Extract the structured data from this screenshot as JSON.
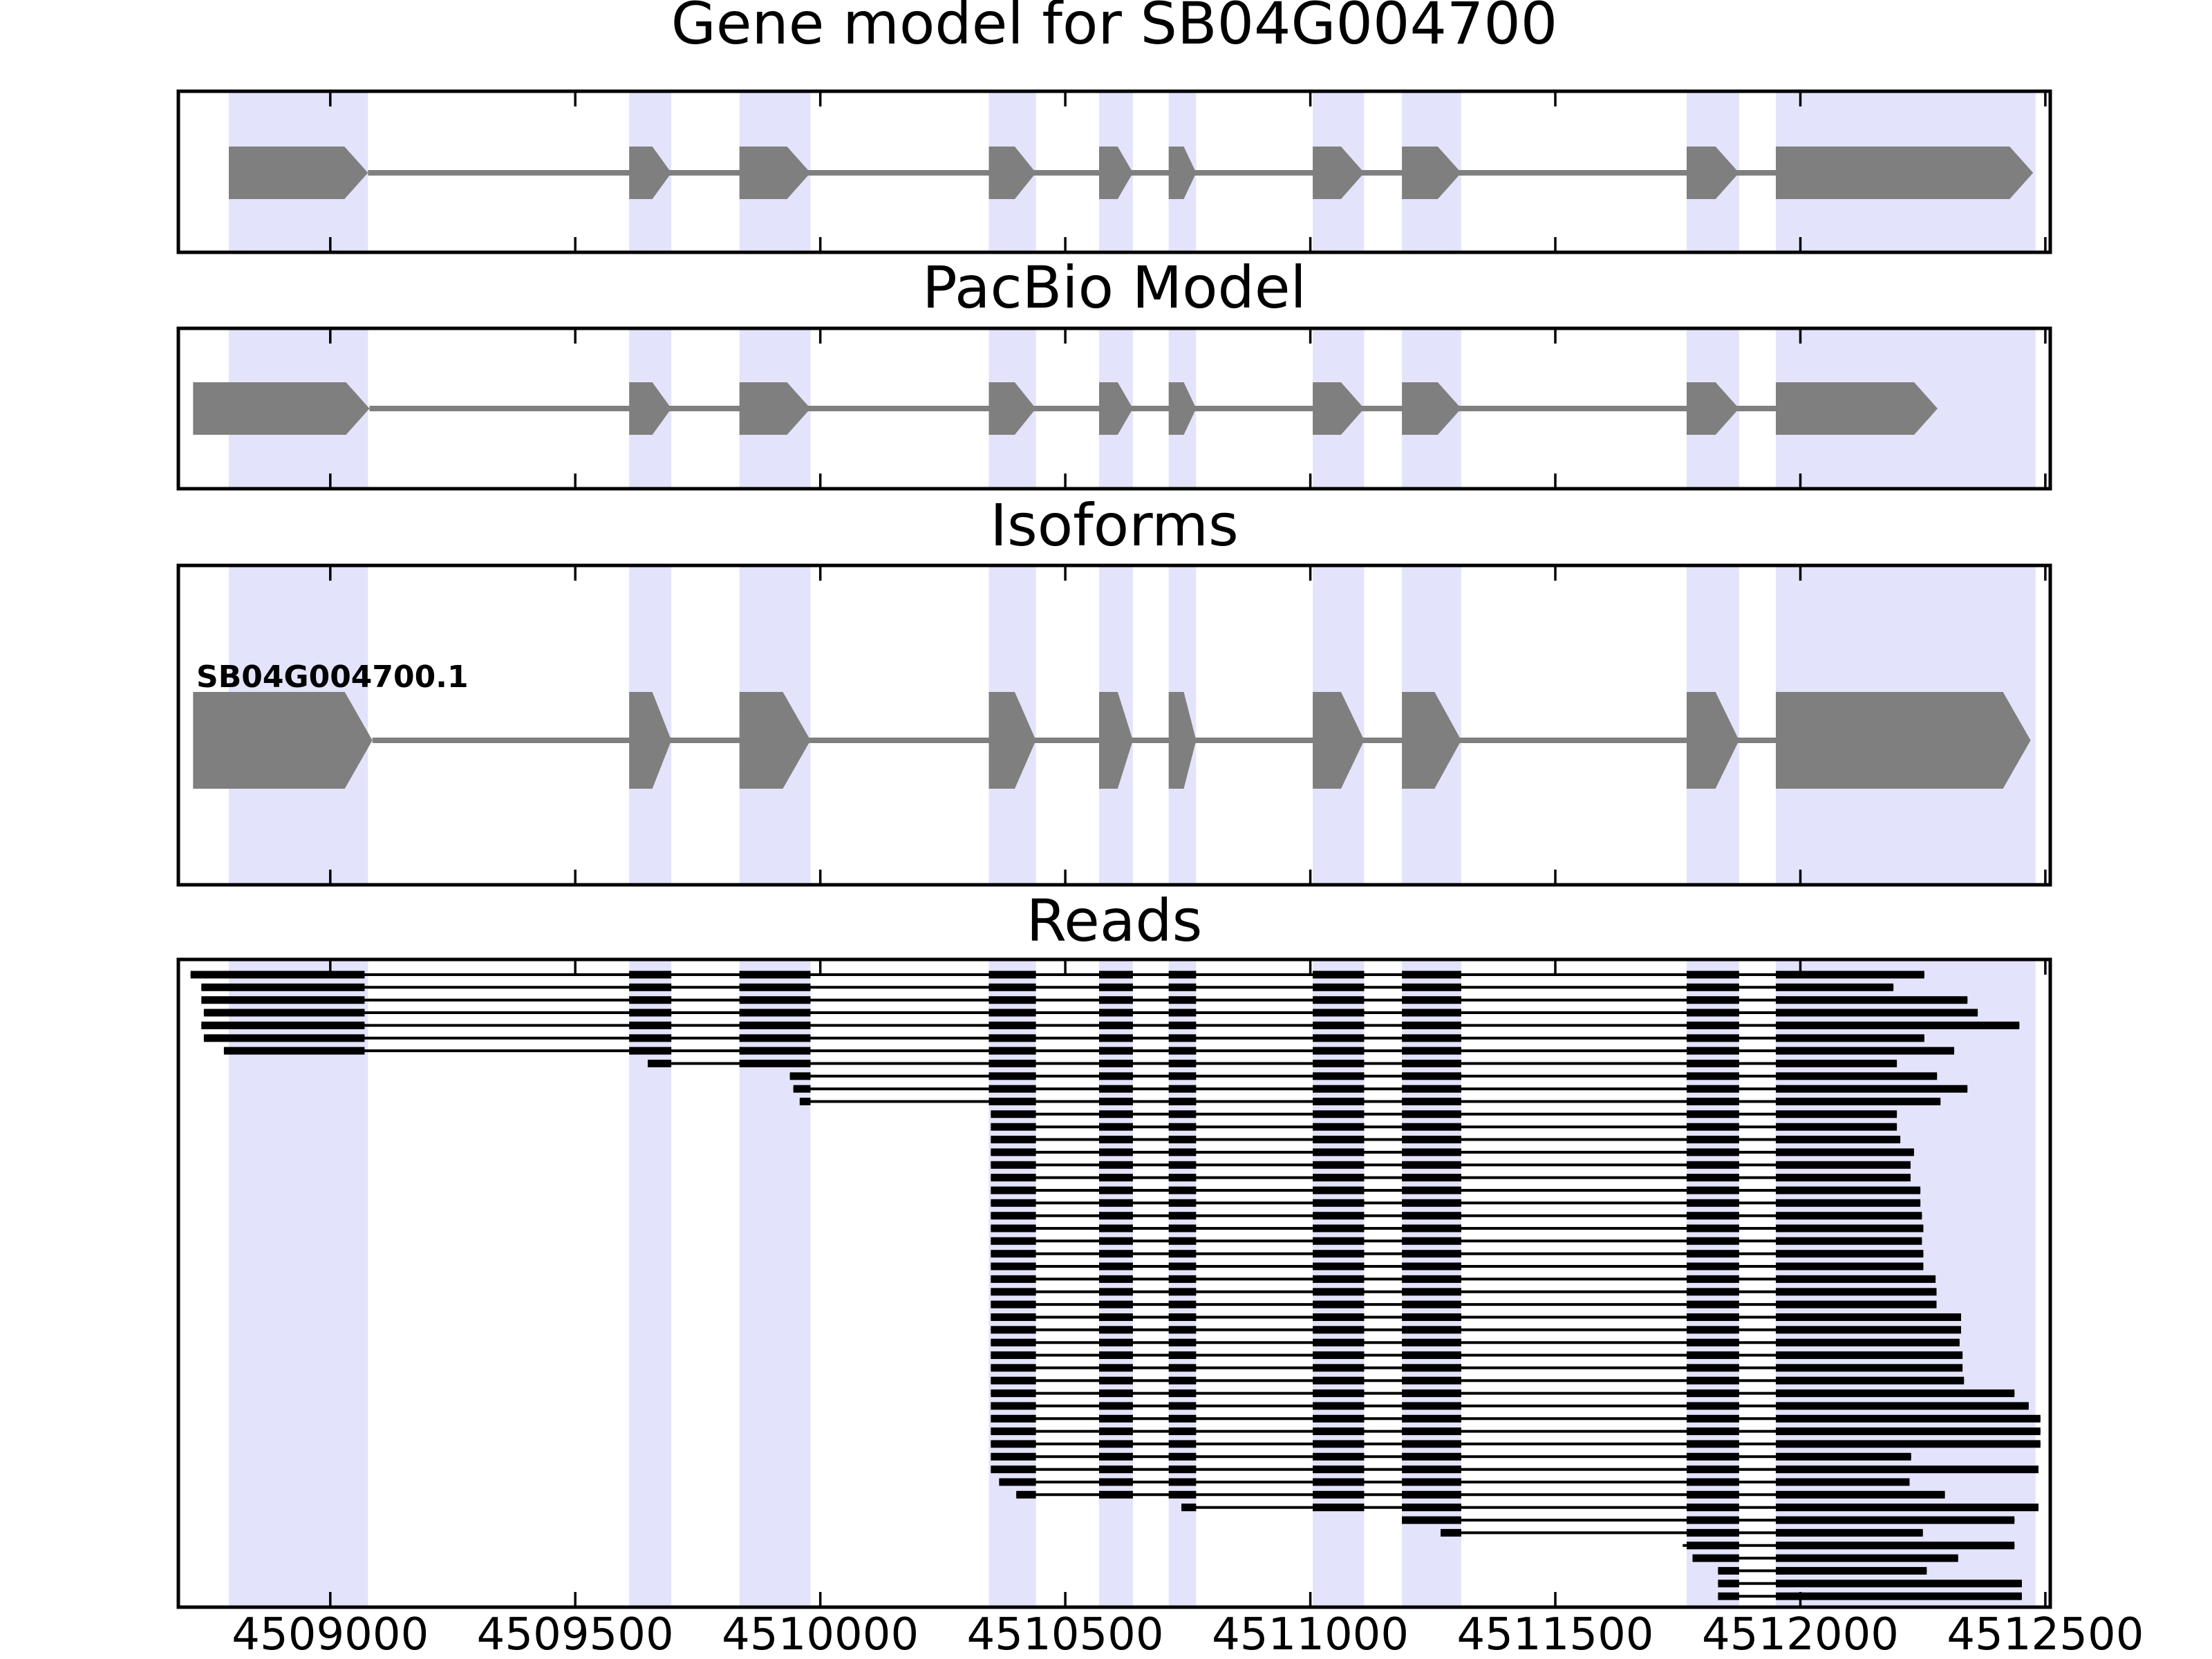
{
  "colors": {
    "background": "#ffffff",
    "band_fill": "#e3e3fb",
    "exon_fill": "#7f7f7f",
    "intron_line": "#7f7f7f",
    "read_fill": "#000000",
    "axis_color": "#000000"
  },
  "chart_data": {
    "type": "gene-structure-tracks",
    "figure_title": "Gene model for SB04G004700",
    "x_axis": {
      "domain": [
        4508690,
        4512510
      ],
      "ticks": [
        4509000,
        4509500,
        4510000,
        4510500,
        4511000,
        4511500,
        4512000,
        4512500
      ],
      "tick_labels": [
        "4509000",
        "4509500",
        "4510000",
        "4510500",
        "4511000",
        "4511500",
        "4512000",
        "4512500"
      ]
    },
    "highlight_bands": [
      [
        4508793,
        4509077
      ],
      [
        4509610,
        4509696
      ],
      [
        4509835,
        4509980
      ],
      [
        4510344,
        4510440
      ],
      [
        4510569,
        4510638
      ],
      [
        4510711,
        4510767
      ],
      [
        4511005,
        4511110
      ],
      [
        4511187,
        4511308
      ],
      [
        4511768,
        4511875
      ],
      [
        4511950,
        4512480
      ]
    ],
    "panels": [
      {
        "title": "Gene model for SB04G004700",
        "kind": "model",
        "models": [
          {
            "label": "",
            "strand": "+",
            "exons": [
              [
                4508793,
                4509077
              ],
              [
                4509610,
                4509696
              ],
              [
                4509835,
                4509980
              ],
              [
                4510344,
                4510440
              ],
              [
                4510569,
                4510638
              ],
              [
                4510711,
                4510767
              ],
              [
                4511005,
                4511110
              ],
              [
                4511187,
                4511308
              ],
              [
                4511768,
                4511875
              ],
              [
                4511950,
                4512475
              ]
            ]
          }
        ]
      },
      {
        "title": "PacBio Model",
        "kind": "model",
        "models": [
          {
            "label": "",
            "strand": "+",
            "exons": [
              [
                4508720,
                4509080
              ],
              [
                4509610,
                4509696
              ],
              [
                4509835,
                4509980
              ],
              [
                4510344,
                4510440
              ],
              [
                4510569,
                4510638
              ],
              [
                4510711,
                4510767
              ],
              [
                4511005,
                4511110
              ],
              [
                4511187,
                4511308
              ],
              [
                4511768,
                4511875
              ],
              [
                4511950,
                4512280
              ]
            ]
          }
        ]
      },
      {
        "title": "Isoforms",
        "kind": "model",
        "models": [
          {
            "label": "SB04G004700.1",
            "strand": "+",
            "exons": [
              [
                4508720,
                4509086
              ],
              [
                4509610,
                4509696
              ],
              [
                4509835,
                4509980
              ],
              [
                4510344,
                4510440
              ],
              [
                4510569,
                4510638
              ],
              [
                4510711,
                4510767
              ],
              [
                4511005,
                4511110
              ],
              [
                4511187,
                4511308
              ],
              [
                4511768,
                4511875
              ],
              [
                4511950,
                4512470
              ]
            ]
          }
        ]
      },
      {
        "title": "Reads",
        "kind": "reads",
        "read_exon_blocks": [
          [
            4508712,
            4509070
          ],
          [
            4509610,
            4509696
          ],
          [
            4509835,
            4509980
          ],
          [
            4510344,
            4510440
          ],
          [
            4510569,
            4510638
          ],
          [
            4510711,
            4510767
          ],
          [
            4511005,
            4511110
          ],
          [
            4511187,
            4511308
          ],
          [
            4511768,
            4511875
          ],
          [
            4511950,
            4512510
          ]
        ],
        "reads": [
          [
            4508715,
            4512253
          ],
          [
            4508737,
            4512190
          ],
          [
            4508737,
            4512341
          ],
          [
            4508742,
            4512362
          ],
          [
            4508737,
            4512447
          ],
          [
            4508742,
            4512253
          ],
          [
            4508783,
            4512314
          ],
          [
            4509648,
            4512197
          ],
          [
            4509938,
            4512279
          ],
          [
            4509945,
            4512341
          ],
          [
            4509958,
            4512286
          ],
          [
            4510348,
            4512197
          ],
          [
            4510348,
            4512197
          ],
          [
            4510348,
            4512204
          ],
          [
            4510348,
            4512232
          ],
          [
            4510348,
            4512225
          ],
          [
            4510348,
            4512225
          ],
          [
            4510348,
            4512245
          ],
          [
            4510348,
            4512245
          ],
          [
            4510348,
            4512248
          ],
          [
            4510348,
            4512251
          ],
          [
            4510348,
            4512248
          ],
          [
            4510348,
            4512251
          ],
          [
            4510348,
            4512251
          ],
          [
            4510348,
            4512276
          ],
          [
            4510348,
            4512278
          ],
          [
            4510348,
            4512278
          ],
          [
            4510348,
            4512328
          ],
          [
            4510348,
            4512328
          ],
          [
            4510348,
            4512325
          ],
          [
            4510348,
            4512331
          ],
          [
            4510348,
            4512331
          ],
          [
            4510348,
            4512334
          ],
          [
            4510348,
            4512437
          ],
          [
            4510348,
            4512466
          ],
          [
            4510348,
            4512490
          ],
          [
            4510348,
            4512490
          ],
          [
            4510348,
            4512490
          ],
          [
            4510348,
            4512226
          ],
          [
            4510348,
            4512486
          ],
          [
            4510365,
            4512223
          ],
          [
            4510400,
            4512295
          ],
          [
            4510737,
            4512486
          ],
          [
            4511187,
            4512437
          ],
          [
            4511266,
            4512250
          ],
          [
            4511760,
            4512437
          ],
          [
            4511780,
            4512322
          ],
          [
            4511832,
            4512258
          ],
          [
            4511832,
            4512452
          ],
          [
            4511832,
            4512452
          ]
        ]
      }
    ]
  }
}
